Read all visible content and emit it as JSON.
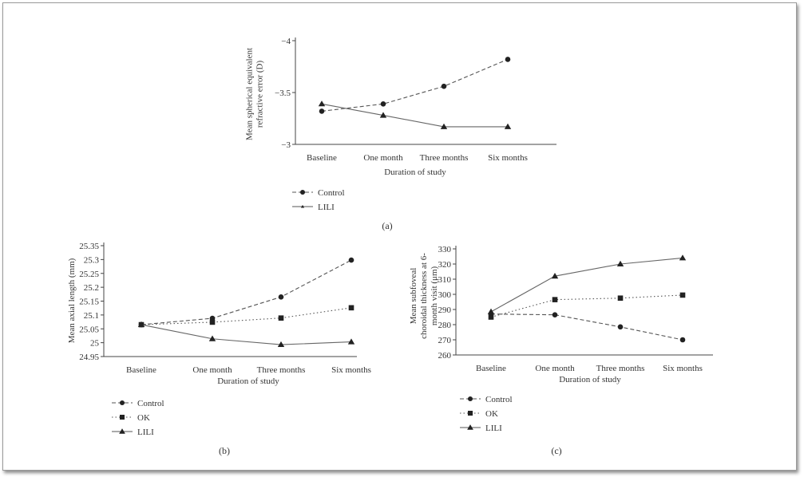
{
  "figure": {
    "panel_labels": {
      "a": "(a)",
      "b": "(b)",
      "c": "(c)"
    }
  },
  "chart_data": [
    {
      "id": "a",
      "type": "line",
      "xlabel": "Duration of study",
      "ylabel": "Mean spherical equivalent refractive error (D)",
      "ylabel_lines": [
        "Mean spherical equivalent",
        "refractive error (D)"
      ],
      "categories": [
        "Baseline",
        "One month",
        "Three months",
        "Six months"
      ],
      "ylim": [
        -3,
        -4
      ],
      "yticks": [
        -4,
        -3.5,
        -3
      ],
      "ytick_labels": [
        "−4",
        "−3.5",
        "−3"
      ],
      "series": [
        {
          "name": "Control",
          "values": [
            -3.32,
            -3.39,
            -3.56,
            -3.82
          ],
          "style": "dashed",
          "marker": "circle"
        },
        {
          "name": "LILI",
          "values": [
            -3.39,
            -3.28,
            -3.17,
            -3.17
          ],
          "style": "solid",
          "marker": "triangle"
        }
      ],
      "legend_placement": "bottom-left"
    },
    {
      "id": "b",
      "type": "line",
      "xlabel": "Duration of study",
      "ylabel": "Mean axial length (mm)",
      "ylabel_lines": [
        "Mean axial length (mm)"
      ],
      "categories": [
        "Baseline",
        "One month",
        "Three months",
        "Six months"
      ],
      "ylim": [
        24.95,
        25.35
      ],
      "yticks": [
        24.95,
        25,
        25.05,
        25.1,
        25.15,
        25.2,
        25.25,
        25.3,
        25.35
      ],
      "ytick_labels": [
        "24.95",
        "25",
        "25.05",
        "25.1",
        "25.15",
        "25.2",
        "25.25",
        "25.3",
        "25.35"
      ],
      "series": [
        {
          "name": "Control",
          "values": [
            25.065,
            25.088,
            25.165,
            25.298
          ],
          "style": "dashed",
          "marker": "circle"
        },
        {
          "name": "OK",
          "values": [
            25.065,
            25.074,
            25.089,
            25.126
          ],
          "style": "dotted",
          "marker": "square"
        },
        {
          "name": "LILI",
          "values": [
            25.065,
            25.014,
            24.993,
            25.003
          ],
          "style": "solid",
          "marker": "triangle"
        }
      ],
      "legend_placement": "bottom-left"
    },
    {
      "id": "c",
      "type": "line",
      "xlabel": "Duration of study",
      "ylabel": "Mean subfoveal choroidal thickness at 6-month visit (μm)",
      "ylabel_lines": [
        "Mean subfoveal",
        "choroidal thickness at 6-",
        "month visit (μm)"
      ],
      "categories": [
        "Baseline",
        "One month",
        "Three months",
        "Six months"
      ],
      "ylim": [
        260,
        330
      ],
      "yticks": [
        260,
        270,
        280,
        290,
        300,
        310,
        320,
        330
      ],
      "ytick_labels": [
        "260",
        "270",
        "280",
        "290",
        "300",
        "310",
        "320",
        "330"
      ],
      "series": [
        {
          "name": "Control",
          "values": [
            287,
            286.5,
            278.5,
            270
          ],
          "style": "dashed",
          "marker": "circle"
        },
        {
          "name": "OK",
          "values": [
            285,
            296.5,
            297.5,
            299.5
          ],
          "style": "dotted",
          "marker": "square"
        },
        {
          "name": "LILI",
          "values": [
            288.5,
            312,
            320,
            324
          ],
          "style": "solid",
          "marker": "triangle"
        }
      ],
      "legend_placement": "bottom-left"
    }
  ]
}
